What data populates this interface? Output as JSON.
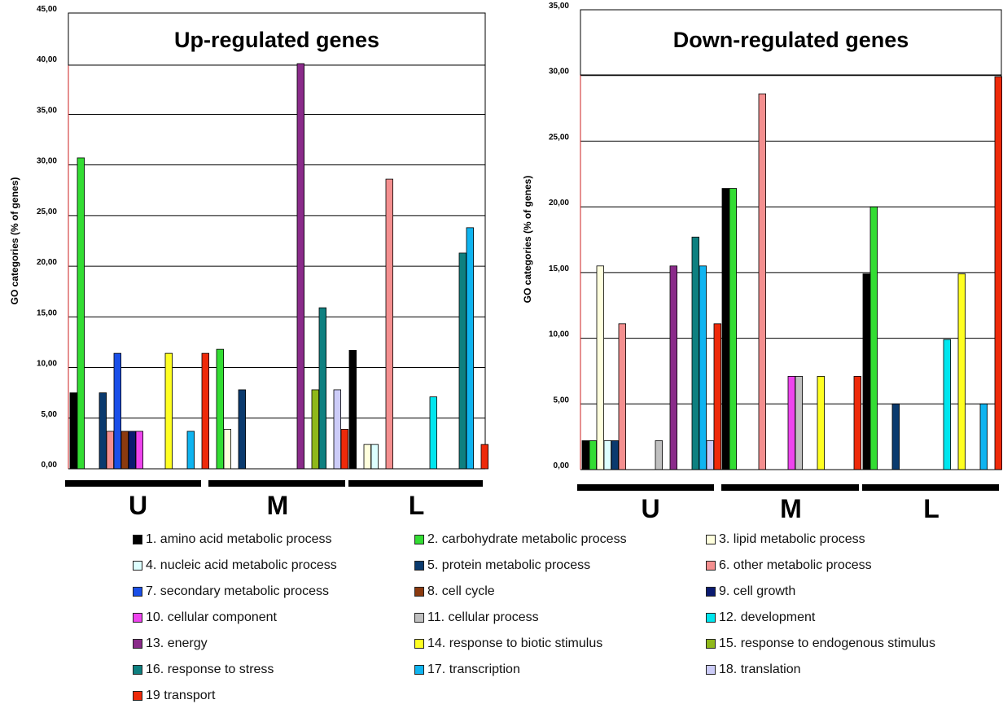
{
  "chart_data": [
    {
      "type": "bar",
      "title": "Up-regulated genes",
      "ylabel": "GO categories (% of genes)",
      "ylim": [
        0,
        45
      ],
      "yticks": [
        "0,00",
        "5,00",
        "10,00",
        "15,00",
        "20,00",
        "25,00",
        "30,00",
        "35,00",
        "40,00",
        "45,00"
      ],
      "groups": [
        "U",
        "M",
        "L"
      ],
      "grid": true,
      "series_values": {
        "U": [
          7.5,
          30.7,
          0,
          0,
          7.5,
          3.7,
          11.4,
          3.7,
          3.7,
          3.7,
          0,
          0,
          0,
          11.4,
          0,
          0,
          3.7,
          0,
          11.4
        ],
        "M": [
          0,
          11.8,
          3.9,
          0,
          7.8,
          0,
          0,
          0,
          0,
          0,
          0,
          0,
          40.0,
          0,
          7.8,
          15.9,
          0,
          7.8,
          3.9
        ],
        "L": [
          11.7,
          0,
          2.4,
          2.4,
          0,
          28.6,
          0,
          0,
          0,
          0,
          0,
          7.1,
          0,
          0,
          0,
          21.3,
          23.8,
          0,
          2.4
        ]
      }
    },
    {
      "type": "bar",
      "title": "Down-regulated genes",
      "ylabel": "GO categories (% of genes)",
      "ylim": [
        0,
        35
      ],
      "yticks": [
        "0,00",
        "5,00",
        "10,00",
        "15,00",
        "20,00",
        "25,00",
        "30,00",
        "35,00"
      ],
      "groups": [
        "U",
        "M",
        "L"
      ],
      "grid": true,
      "series_values": {
        "U": [
          2.2,
          2.2,
          15.5,
          2.2,
          2.2,
          11.1,
          0,
          0,
          0,
          0,
          2.2,
          0,
          15.5,
          0,
          0,
          17.7,
          15.5,
          2.2,
          11.1
        ],
        "M": [
          21.4,
          21.4,
          0,
          0,
          0,
          28.6,
          0,
          0,
          0,
          7.1,
          7.1,
          0,
          0,
          7.1,
          0,
          0,
          0,
          0,
          7.1
        ],
        "L": [
          14.9,
          20.0,
          0,
          0,
          5.0,
          0,
          0,
          0,
          0,
          0,
          0,
          9.9,
          0,
          14.9,
          0,
          0,
          5.0,
          0,
          29.9
        ]
      }
    }
  ],
  "series": [
    {
      "name": "1. amino acid metabolic process",
      "color": "#000000"
    },
    {
      "name": "2. carbohydrate metabolic process",
      "color": "#33dd33"
    },
    {
      "name": "3. lipid metabolic process",
      "color": "#ffffdd"
    },
    {
      "name": "4. nucleic acid metabolic process",
      "color": "#ddffff"
    },
    {
      "name": "5. protein metabolic process",
      "color": "#0a3a6e"
    },
    {
      "name": "6. other metabolic process",
      "color": "#f48f8f"
    },
    {
      "name": "7. secondary metabolic process",
      "color": "#1a4fe8"
    },
    {
      "name": "8. cell cycle",
      "color": "#8b3a0f"
    },
    {
      "name": "9. cell growth",
      "color": "#0a1a70"
    },
    {
      "name": "10. cellular component",
      "color": "#ee44ee"
    },
    {
      "name": "11. cellular process",
      "color": "#c0c0c0"
    },
    {
      "name": "12. development",
      "color": "#00e6ee"
    },
    {
      "name": "13. energy",
      "color": "#8a2b8a"
    },
    {
      "name": "14. response to biotic stimulus",
      "color": "#ffff22"
    },
    {
      "name": "15. response to endogenous stimulus",
      "color": "#8fb81a"
    },
    {
      "name": "16. response to stress",
      "color": "#0e8080"
    },
    {
      "name": "17. transcription",
      "color": "#0fb4f0"
    },
    {
      "name": "18. translation",
      "color": "#ccccf8"
    },
    {
      "name": "19 transport",
      "color": "#ee2a0a"
    }
  ],
  "legend_order": [
    [
      0,
      1,
      2
    ],
    [
      3,
      4,
      5
    ],
    [
      6,
      7,
      8
    ],
    [
      9,
      10,
      11
    ],
    [
      12,
      13,
      14
    ],
    [
      15,
      16,
      17
    ],
    [
      18
    ]
  ]
}
